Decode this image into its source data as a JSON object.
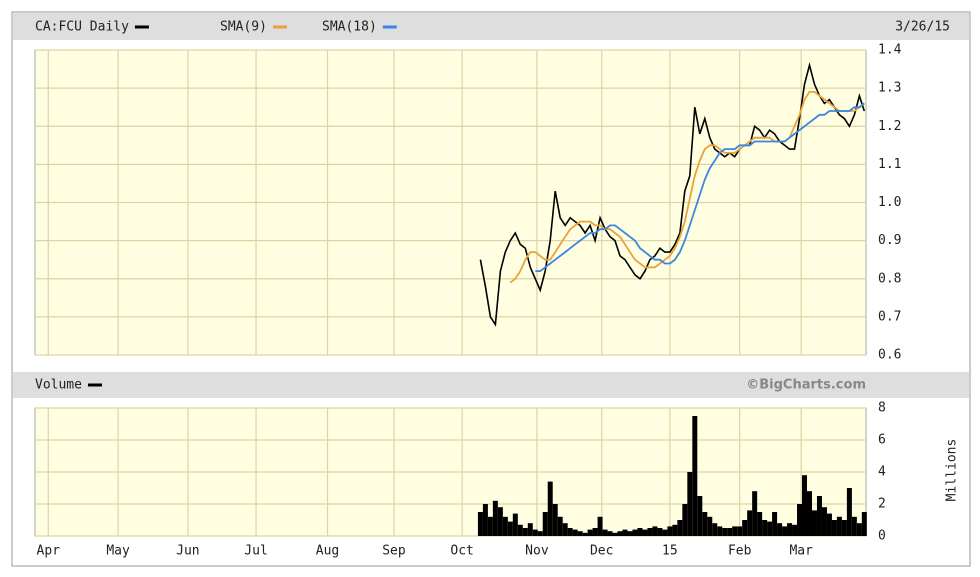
{
  "chart_data": [
    {
      "type": "line",
      "annotation": "3/26/15",
      "x": [
        134,
        135.5,
        137,
        138.5,
        140,
        141.5,
        143,
        144.5,
        146,
        147.5,
        149,
        150.5,
        152,
        153.5,
        155,
        156.5,
        158,
        159.5,
        161,
        162.5,
        164,
        165.5,
        167,
        168.5,
        170,
        171.5,
        173,
        174.5,
        176,
        177.5,
        179,
        180.5,
        182,
        183.5,
        185,
        186.5,
        188,
        189.5,
        191,
        192.5,
        194,
        195.5,
        197,
        198.5,
        200,
        201.5,
        203,
        204.5,
        206,
        207.5,
        209,
        210.5,
        212,
        213.5,
        215,
        216.5,
        218,
        219.5,
        221,
        222.5,
        224,
        225.5,
        227,
        228.5,
        230,
        231.5,
        233,
        234.5,
        236,
        237.5,
        239,
        240.5,
        242,
        243.5,
        245,
        246.5,
        248,
        249.5
      ],
      "xlim": [
        0,
        250
      ],
      "ylim": [
        0.6,
        1.4
      ],
      "yticks": [
        0.6,
        0.7,
        0.8,
        0.9,
        {
          "value": 1,
          "label": "1.0"
        },
        1.1,
        1.2,
        1.3,
        1.4
      ],
      "grid": true,
      "series": [
        {
          "name": "CA:FCU Daily",
          "color": "#000000",
          "values": [
            0.85,
            0.78,
            0.7,
            0.68,
            0.82,
            0.87,
            0.9,
            0.92,
            0.89,
            0.88,
            0.83,
            0.8,
            0.77,
            0.82,
            0.9,
            1.03,
            0.96,
            0.94,
            0.96,
            0.95,
            0.94,
            0.92,
            0.94,
            0.9,
            0.96,
            0.93,
            0.91,
            0.9,
            0.86,
            0.85,
            0.83,
            0.81,
            0.8,
            0.82,
            0.85,
            0.86,
            0.88,
            0.87,
            0.87,
            0.89,
            0.92,
            1.03,
            1.07,
            1.25,
            1.18,
            1.22,
            1.17,
            1.14,
            1.13,
            1.12,
            1.13,
            1.12,
            1.14,
            1.15,
            1.15,
            1.2,
            1.19,
            1.17,
            1.19,
            1.18,
            1.16,
            1.15,
            1.14,
            1.14,
            1.22,
            1.31,
            1.36,
            1.31,
            1.28,
            1.26,
            1.27,
            1.25,
            1.23,
            1.22,
            1.2,
            1.23,
            1.28,
            1.24
          ]
        },
        {
          "name": "SMA(9)",
          "color": "#e8a33c",
          "values": [
            null,
            null,
            null,
            null,
            null,
            null,
            0.79,
            0.8,
            0.82,
            0.85,
            0.87,
            0.87,
            0.86,
            0.85,
            0.85,
            0.87,
            0.89,
            0.91,
            0.93,
            0.94,
            0.95,
            0.95,
            0.95,
            0.94,
            0.94,
            0.93,
            0.93,
            0.92,
            0.91,
            0.89,
            0.87,
            0.85,
            0.84,
            0.83,
            0.83,
            0.83,
            0.84,
            0.85,
            0.86,
            0.88,
            0.91,
            0.95,
            1.01,
            1.07,
            1.11,
            1.14,
            1.15,
            1.15,
            1.14,
            1.13,
            1.13,
            1.13,
            1.14,
            1.15,
            1.16,
            1.17,
            1.17,
            1.17,
            1.17,
            1.16,
            1.16,
            1.16,
            1.17,
            1.2,
            1.23,
            1.27,
            1.29,
            1.29,
            1.28,
            1.27,
            1.26,
            1.25,
            1.24,
            1.24,
            1.24,
            1.24,
            1.25,
            1.26
          ]
        },
        {
          "name": "SMA(18)",
          "color": "#3a86e0",
          "values": [
            null,
            null,
            null,
            null,
            null,
            null,
            null,
            null,
            null,
            null,
            null,
            0.82,
            0.82,
            0.83,
            0.84,
            0.85,
            0.86,
            0.87,
            0.88,
            0.89,
            0.9,
            0.91,
            0.92,
            0.92,
            0.93,
            0.93,
            0.94,
            0.94,
            0.93,
            0.92,
            0.91,
            0.9,
            0.88,
            0.87,
            0.86,
            0.85,
            0.85,
            0.84,
            0.84,
            0.85,
            0.87,
            0.9,
            0.94,
            0.98,
            1.02,
            1.06,
            1.09,
            1.11,
            1.13,
            1.14,
            1.14,
            1.14,
            1.15,
            1.15,
            1.15,
            1.16,
            1.16,
            1.16,
            1.16,
            1.16,
            1.16,
            1.16,
            1.17,
            1.18,
            1.19,
            1.2,
            1.21,
            1.22,
            1.23,
            1.23,
            1.24,
            1.24,
            1.24,
            1.24,
            1.24,
            1.25,
            1.25,
            1.26
          ]
        }
      ]
    },
    {
      "type": "bar",
      "title": "Volume",
      "annotation": "©BigCharts.com",
      "y_label": "Millions",
      "color": "#000000",
      "x": [
        134,
        135.5,
        137,
        138.5,
        140,
        141.5,
        143,
        144.5,
        146,
        147.5,
        149,
        150.5,
        152,
        153.5,
        155,
        156.5,
        158,
        159.5,
        161,
        162.5,
        164,
        165.5,
        167,
        168.5,
        170,
        171.5,
        173,
        174.5,
        176,
        177.5,
        179,
        180.5,
        182,
        183.5,
        185,
        186.5,
        188,
        189.5,
        191,
        192.5,
        194,
        195.5,
        197,
        198.5,
        200,
        201.5,
        203,
        204.5,
        206,
        207.5,
        209,
        210.5,
        212,
        213.5,
        215,
        216.5,
        218,
        219.5,
        221,
        222.5,
        224,
        225.5,
        227,
        228.5,
        230,
        231.5,
        233,
        234.5,
        236,
        237.5,
        239,
        240.5,
        242,
        243.5,
        245,
        246.5,
        248,
        249.5
      ],
      "values": [
        1.5,
        2.0,
        1.2,
        2.2,
        1.8,
        1.2,
        0.9,
        1.4,
        0.7,
        0.5,
        0.8,
        0.4,
        0.3,
        1.5,
        3.4,
        2.0,
        1.2,
        0.8,
        0.5,
        0.4,
        0.3,
        0.2,
        0.4,
        0.5,
        1.2,
        0.4,
        0.3,
        0.2,
        0.3,
        0.4,
        0.3,
        0.4,
        0.5,
        0.4,
        0.5,
        0.6,
        0.5,
        0.4,
        0.6,
        0.7,
        1.0,
        2.0,
        4.0,
        7.5,
        2.5,
        1.5,
        1.2,
        0.8,
        0.6,
        0.5,
        0.5,
        0.6,
        0.6,
        1.0,
        1.6,
        2.8,
        1.5,
        1.0,
        0.9,
        1.5,
        0.8,
        0.6,
        0.8,
        0.7,
        2.0,
        3.8,
        2.8,
        1.6,
        2.5,
        1.8,
        1.4,
        1.0,
        1.2,
        1.0,
        3.0,
        1.2,
        0.8,
        1.5
      ],
      "xlim": [
        0,
        250
      ],
      "xticks": [
        {
          "value": 4,
          "label": "Apr"
        },
        {
          "value": 25,
          "label": "May"
        },
        {
          "value": 46,
          "label": "Jun"
        },
        {
          "value": 66.5,
          "label": "Jul"
        },
        {
          "value": 88,
          "label": "Aug"
        },
        {
          "value": 108,
          "label": "Sep"
        },
        {
          "value": 128.5,
          "label": "Oct"
        },
        {
          "value": 151,
          "label": "Nov"
        },
        {
          "value": 170.5,
          "label": "Dec"
        },
        {
          "value": 191,
          "label": "15"
        },
        {
          "value": 212,
          "label": "Feb"
        },
        {
          "value": 230.5,
          "label": "Mar"
        }
      ],
      "ylim": [
        0,
        8
      ],
      "yticks": [
        0,
        2,
        4,
        6,
        8
      ],
      "grid": true
    }
  ]
}
